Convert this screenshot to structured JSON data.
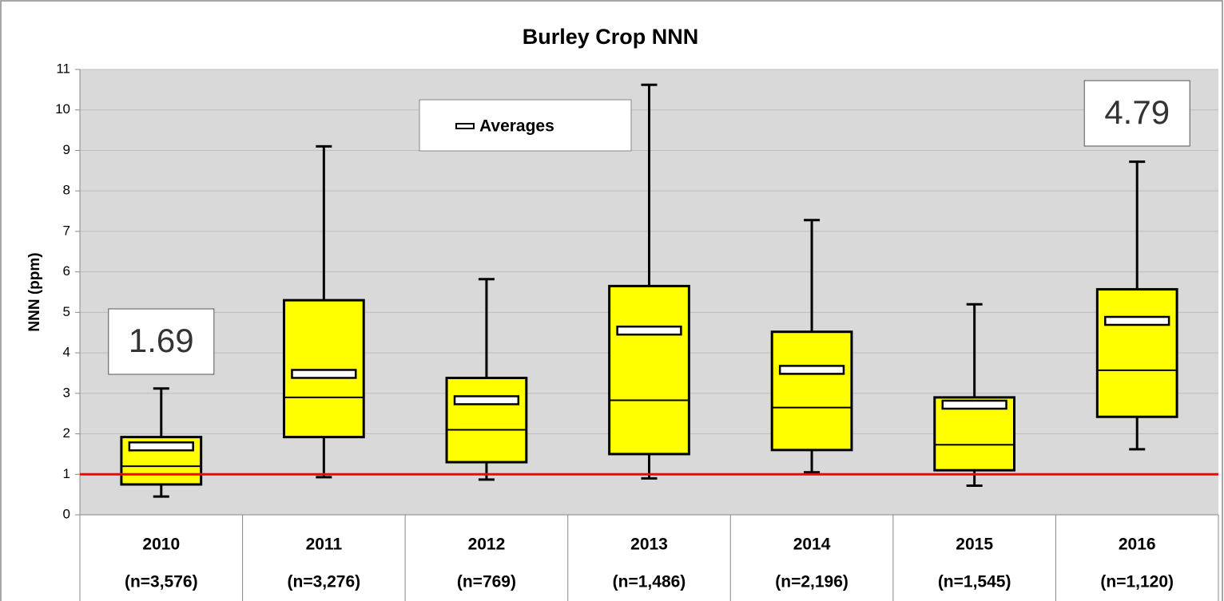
{
  "chart_data": {
    "type": "box",
    "title": "Burley Crop NNN",
    "y_label": "NNN (ppm)",
    "categories": [
      "2010",
      "2011",
      "2012",
      "2013",
      "2014",
      "2015",
      "2016"
    ],
    "sample_sizes": [
      "(n=3,576)",
      "(n=3,276)",
      "(n=769)",
      "(n=1,486)",
      "(n=2,196)",
      "(n=1,545)",
      "(n=1,120)"
    ],
    "whisker_low": [
      0.45,
      0.93,
      0.87,
      0.9,
      1.05,
      0.72,
      1.62
    ],
    "q1": [
      0.75,
      1.92,
      1.3,
      1.5,
      1.6,
      1.1,
      2.42
    ],
    "median": [
      1.2,
      2.9,
      2.1,
      2.83,
      2.65,
      1.73,
      3.57
    ],
    "q3": [
      1.92,
      5.3,
      3.38,
      5.65,
      4.52,
      2.9,
      5.57
    ],
    "whisker_high": [
      3.12,
      9.1,
      5.82,
      10.62,
      7.28,
      5.2,
      8.72
    ],
    "averages": [
      1.69,
      3.48,
      2.83,
      4.55,
      3.58,
      2.72,
      4.79
    ],
    "average_legend": "Averages",
    "box_color": "#ffff00",
    "plot_background": "#d9d9d9",
    "reference_line": {
      "value": 1,
      "color": "#ff0000"
    },
    "annotations": [
      {
        "label": "1.69",
        "category": "2010"
      },
      {
        "label": "4.79",
        "category": "2016"
      }
    ],
    "ylim": [
      0,
      11
    ],
    "yticks": [
      0,
      1,
      2,
      3,
      4,
      5,
      6,
      7,
      8,
      9,
      10,
      11
    ],
    "grid": true
  }
}
